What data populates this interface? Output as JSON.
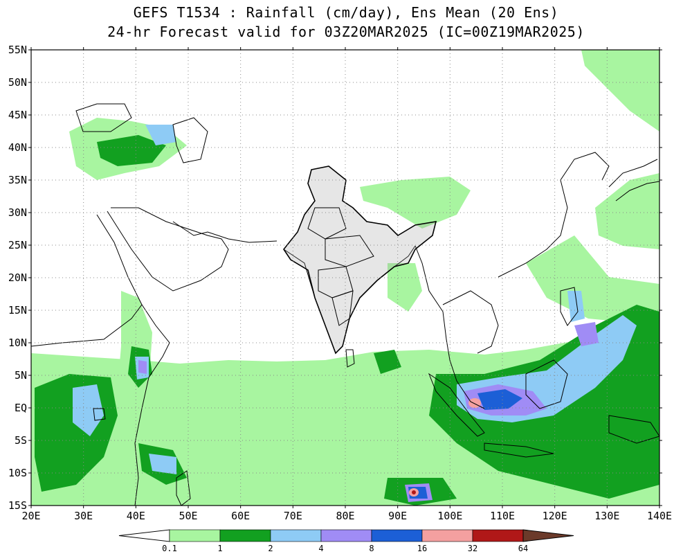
{
  "title": {
    "line1": "GEFS T1534 : Rainfall (cm/day), Ens Mean (20 Ens)",
    "line2": "24-hr Forecast valid for 03Z20MAR2025 (IC=00Z19MAR2025)"
  },
  "axes": {
    "lat_labels": [
      "55N",
      "50N",
      "45N",
      "40N",
      "35N",
      "30N",
      "25N",
      "20N",
      "15N",
      "10N",
      "5N",
      "EQ",
      "5S",
      "10S",
      "15S"
    ],
    "lon_labels": [
      "20E",
      "30E",
      "40E",
      "50E",
      "60E",
      "70E",
      "80E",
      "90E",
      "100E",
      "110E",
      "120E",
      "130E",
      "140E"
    ]
  },
  "colorbar": {
    "levels": [
      "0.1",
      "1",
      "2",
      "4",
      "8",
      "16",
      "32",
      "64"
    ],
    "colors": [
      "#ffffff",
      "#a8f5a0",
      "#12a020",
      "#8ecbf5",
      "#a08cf5",
      "#1c5fd6",
      "#f4a0a0",
      "#b01818",
      "#6b3a2a"
    ]
  },
  "chart_data": {
    "type": "heatmap",
    "units": "cm/day",
    "lon_range": [
      20,
      140
    ],
    "lat_range": [
      -15,
      55
    ],
    "rain_regions": [
      {
        "lat": 5,
        "lon": 105,
        "level": "8-16"
      },
      {
        "lat": 0,
        "lon": 104,
        "level": "16-32"
      },
      {
        "lat": -12,
        "lon": 93,
        "level": "32-64"
      },
      {
        "lat": 6,
        "lon": 40,
        "level": "4-8"
      },
      {
        "lat": -2,
        "lon": 30,
        "level": "2-4"
      },
      {
        "lat": 10,
        "lon": 123,
        "level": "4-8"
      },
      {
        "lat": 42,
        "lon": 45,
        "level": "2-4"
      }
    ]
  }
}
